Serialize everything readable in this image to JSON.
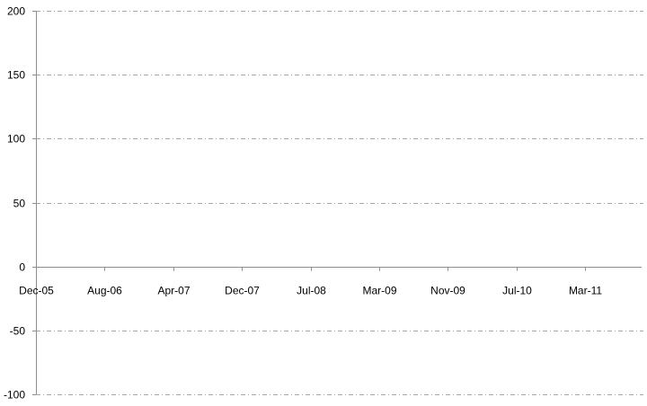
{
  "chart_data": {
    "type": "line",
    "title": "",
    "xlabel": "",
    "ylabel": "",
    "ylim": [
      -100,
      200
    ],
    "yticks": [
      200,
      150,
      100,
      50,
      0,
      -50,
      -100
    ],
    "yticklabels": [
      "200",
      "150",
      "100",
      "50",
      "0",
      "-50",
      "-100"
    ],
    "xticklabels": [
      "Dec-05",
      "Aug-06",
      "Apr-07",
      "Dec-07",
      "Jul-08",
      "Mar-09",
      "Nov-09",
      "Jul-10",
      "Mar-11"
    ],
    "grid": "horizontal dash-dot",
    "series": [],
    "colors": {
      "axis": "#8c8c8c",
      "grid": "#a6a6a6"
    }
  }
}
